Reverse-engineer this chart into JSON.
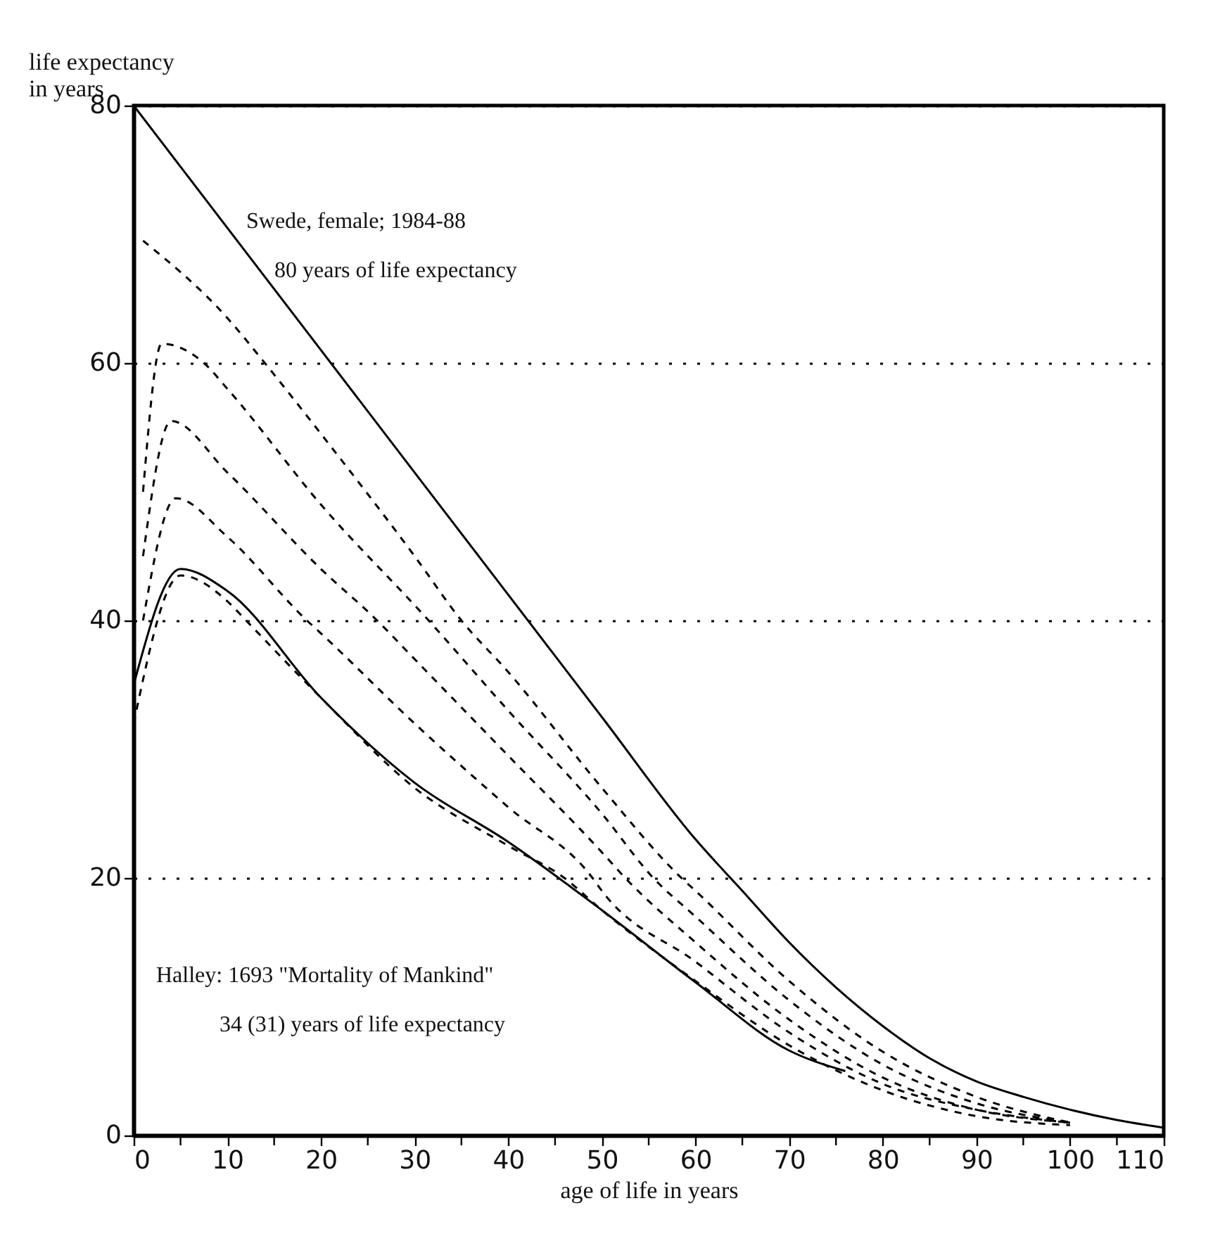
{
  "chart_data": {
    "type": "line",
    "xlabel": "age of life in years",
    "ylabel": "life expectancy\nin years",
    "xlim": [
      0,
      110
    ],
    "ylim": [
      0,
      80
    ],
    "xticks": [
      0,
      {
        "value": 5,
        "label": null
      },
      10,
      {
        "value": 15,
        "label": null
      },
      20,
      {
        "value": 25,
        "label": null
      },
      30,
      {
        "value": 35,
        "label": null
      },
      40,
      {
        "value": 45,
        "label": null
      },
      50,
      {
        "value": 55,
        "label": null
      },
      60,
      {
        "value": 65,
        "label": null
      },
      70,
      {
        "value": 75,
        "label": null
      },
      80,
      {
        "value": 85,
        "label": null
      },
      90,
      {
        "value": 95,
        "label": null
      },
      100,
      {
        "value": 105,
        "label": null
      },
      110
    ],
    "yticks": [
      0,
      20,
      40,
      60,
      80
    ],
    "grid": "y",
    "series": [
      {
        "color": "#000000",
        "line_style": "solid",
        "x": [
          0,
          10,
          20,
          30,
          40,
          50,
          60,
          65,
          70,
          75,
          80,
          85,
          90,
          95,
          100,
          105,
          110
        ],
        "values": [
          80,
          70.5,
          61,
          51.5,
          42,
          32.5,
          23,
          19,
          15,
          11.5,
          8.5,
          6,
          4.2,
          3,
          2,
          1.2,
          0.6
        ]
      },
      {
        "color": "#000000",
        "line_style": "dashed",
        "x": [
          1,
          10,
          14,
          20,
          30,
          35,
          40,
          50,
          58.5,
          60,
          70,
          80,
          90,
          100
        ],
        "values": [
          69.5,
          63.5,
          60,
          54.5,
          45,
          40,
          36,
          27,
          20,
          19,
          12,
          6.5,
          3,
          1
        ]
      },
      {
        "color": "#000000",
        "line_style": "dashed",
        "x": [
          1,
          3,
          7.5,
          10,
          20,
          31.5,
          40,
          50,
          55.5,
          60,
          70,
          80,
          90,
          100
        ],
        "values": [
          50,
          61.5,
          60,
          58,
          49,
          40,
          33,
          25,
          20,
          17,
          10.5,
          5.5,
          2.5,
          1
        ]
      },
      {
        "color": "#000000",
        "line_style": "dashed",
        "x": [
          1,
          4,
          10,
          20,
          26,
          30,
          40,
          50,
          52.5,
          60,
          70,
          80,
          90,
          100
        ],
        "values": [
          45,
          55.5,
          51.5,
          44,
          40,
          37,
          29.5,
          22,
          20,
          15,
          9,
          4.5,
          2,
          1
        ]
      },
      {
        "color": "#000000",
        "line_style": "dashed",
        "x": [
          1,
          4.5,
          10,
          18.5,
          20,
          30,
          40,
          49,
          50,
          60,
          70,
          80,
          90,
          100
        ],
        "values": [
          40,
          49.5,
          46.5,
          40,
          39,
          32,
          25.5,
          20,
          19,
          13.5,
          8,
          4,
          2,
          1
        ]
      },
      {
        "color": "#000000",
        "line_style": "dashed",
        "x": [
          0,
          5,
          10,
          12,
          20,
          30,
          40,
          46,
          50,
          60,
          70,
          80,
          90,
          100
        ],
        "values": [
          32,
          43.5,
          41.5,
          40,
          34,
          27,
          22.5,
          20,
          17.5,
          12,
          7,
          3.5,
          1.5,
          0.8
        ]
      },
      {
        "color": "#000000",
        "line_style": "solid",
        "x": [
          0,
          5,
          10,
          20,
          30,
          40,
          50,
          60,
          70,
          76
        ],
        "values": [
          35,
          44,
          42.3,
          34,
          27.4,
          22.8,
          17.5,
          11.9,
          6.6,
          5
        ]
      }
    ],
    "annotations": [
      "Swede, female; 1984-88",
      "80 years of life expectancy",
      "Halley: 1693 \"Mortality of Mankind\"",
      "34 (31) years of life expectancy"
    ]
  }
}
